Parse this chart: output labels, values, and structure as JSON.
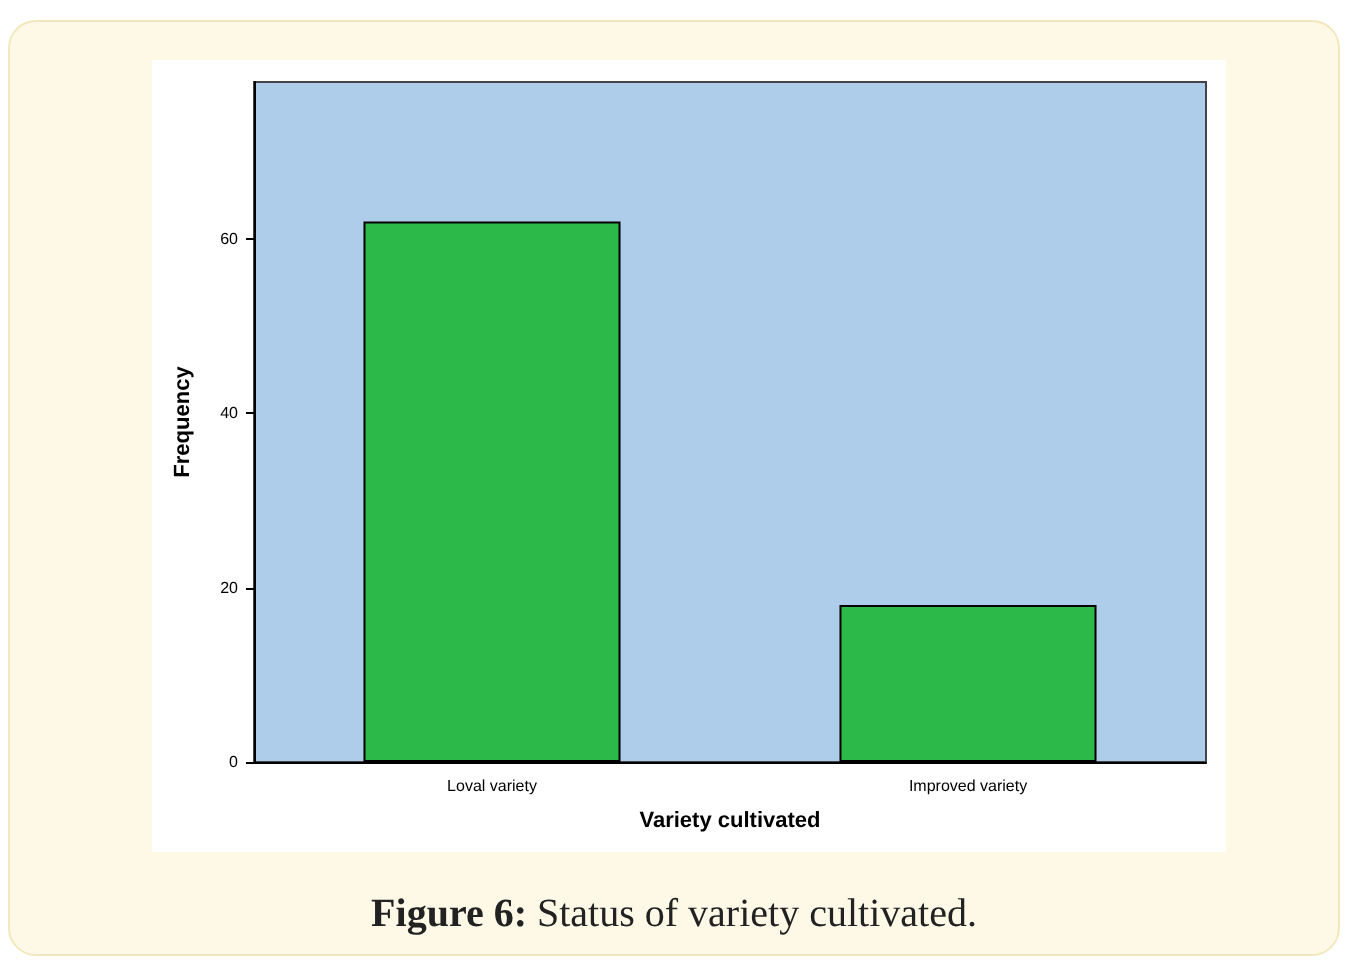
{
  "chart_data": {
    "type": "bar",
    "title": "Figure 6: Status of variety cultivated.",
    "xlabel": "Variety cultivated",
    "ylabel": "Frequency",
    "categories": [
      "Loval variety",
      "Improved variety"
    ],
    "values": [
      62,
      18
    ],
    "color": "#2db84a",
    "ylim": [
      0,
      78
    ],
    "yticks": [
      0,
      20,
      40,
      60
    ],
    "grid": false
  }
}
